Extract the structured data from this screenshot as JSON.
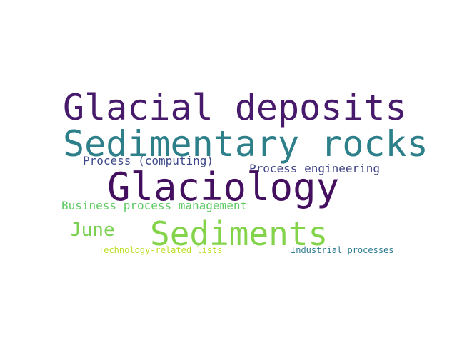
{
  "words": {
    "glacial_deposits": {
      "text": "Glacial deposits",
      "color": "#481a6c"
    },
    "sedimentary_rocks": {
      "text": "Sedimentary rocks",
      "color": "#2d7f8a"
    },
    "process_computing": {
      "text": "Process (computing)",
      "color": "#3e4a89"
    },
    "process_engineering": {
      "text": "Process engineering",
      "color": "#414487"
    },
    "glaciology": {
      "text": "Glaciology",
      "color": "#440f5f"
    },
    "business_process_management": {
      "text": "Business process management",
      "color": "#5ec962"
    },
    "june": {
      "text": "June",
      "color": "#7ad151"
    },
    "sediments": {
      "text": "Sediments",
      "color": "#84d44b"
    },
    "technology_related_lists": {
      "text": "Technology-related lists",
      "color": "#bddf26"
    },
    "industrial_processes": {
      "text": "Industrial processes",
      "color": "#2a788e"
    }
  }
}
